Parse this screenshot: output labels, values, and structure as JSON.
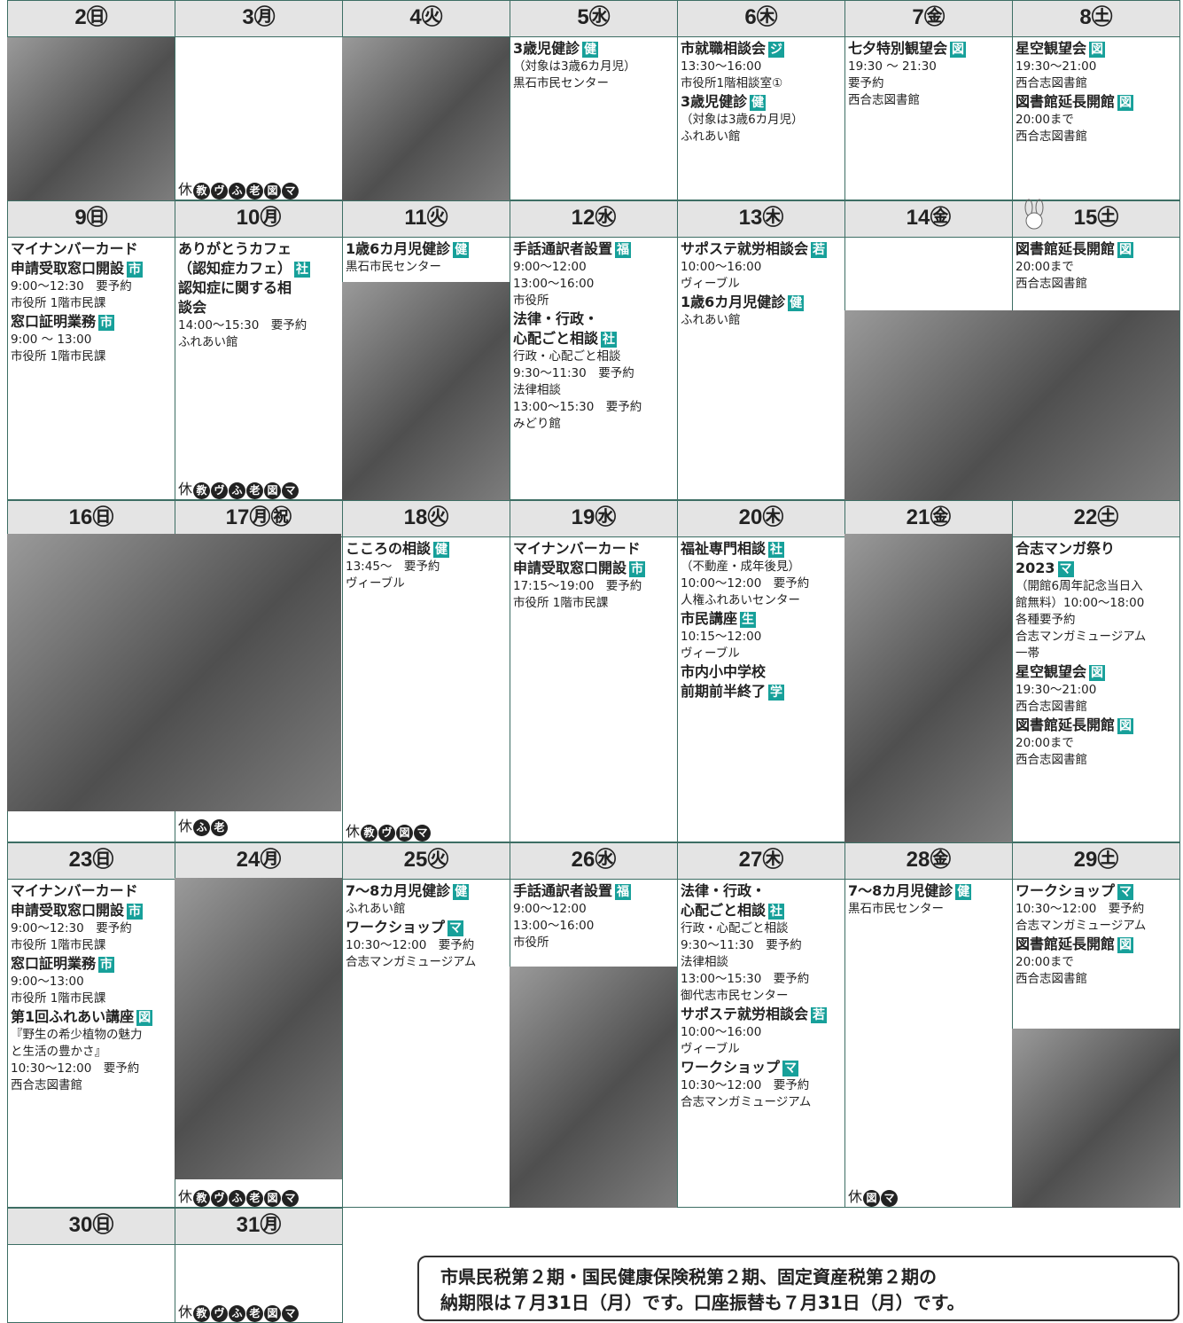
{
  "weeks": [
    {
      "days": [
        {
          "header": "2㊐",
          "events": []
        },
        {
          "header": "3㊊",
          "events": [],
          "closed": "休",
          "closed_marks": [
            "教",
            "ヴ",
            "ふ",
            "老",
            "図",
            "マ"
          ]
        },
        {
          "header": "4㊋",
          "events": []
        },
        {
          "header": "5㊌",
          "events": [
            {
              "title": [
                "3歳児健診"
              ],
              "tag": "健",
              "lines": [
                "（対象は3歳6カ月児）",
                "黒石市民センター"
              ]
            }
          ]
        },
        {
          "header": "6㊍",
          "events": [
            {
              "title": [
                "市就職相談会"
              ],
              "tag": "ジ",
              "lines": [
                "13:30～16:00",
                "市役所1階相談室①"
              ]
            },
            {
              "title": [
                "3歳児健診"
              ],
              "tag": "健",
              "lines": [
                "（対象は3歳6カ月児）",
                "ふれあい館"
              ]
            }
          ]
        },
        {
          "header": "7㊎",
          "events": [
            {
              "title": [
                "七夕特別観望会"
              ],
              "tag": "図",
              "lines": [
                "19:30 ～ 21:30",
                "要予約",
                "西合志図書館"
              ]
            }
          ]
        },
        {
          "header": "8㊏",
          "events": [
            {
              "title": [
                "星空観望会"
              ],
              "tag": "図",
              "lines": [
                "19:30～21:00",
                "西合志図書館"
              ]
            },
            {
              "title": [
                "図書館延長開館"
              ],
              "tag": "図",
              "lines": [
                "20:00まで",
                "西合志図書館"
              ]
            }
          ]
        }
      ]
    },
    {
      "days": [
        {
          "header": "9㊐",
          "events": [
            {
              "title": [
                "マイナンバーカード",
                "申請受取窓口開設"
              ],
              "tag": "市",
              "lines": [
                "9:00～12:30　要予約",
                "市役所 1階市民課"
              ]
            },
            {
              "title": [
                "窓口証明業務"
              ],
              "tag": "市",
              "lines": [
                "9:00 ～ 13:00",
                "市役所 1階市民課"
              ]
            }
          ]
        },
        {
          "header": "10㊊",
          "events": [
            {
              "title": [
                "ありがとうカフェ",
                "（認知症カフェ）"
              ],
              "tag": "社",
              "lines": []
            },
            {
              "title": [
                "認知症に関する相",
                "談会"
              ],
              "lines": [
                "14:00～15:30　要予約",
                "ふれあい館"
              ]
            }
          ],
          "closed": "休",
          "closed_marks": [
            "教",
            "ヴ",
            "ふ",
            "老",
            "図",
            "マ"
          ]
        },
        {
          "header": "11㊋",
          "events": [
            {
              "title": [
                "1歳6カ月児健診"
              ],
              "tag": "健",
              "lines": [
                "黒石市民センター"
              ]
            }
          ]
        },
        {
          "header": "12㊌",
          "events": [
            {
              "title": [
                "手話通訳者設置"
              ],
              "tag": "福",
              "lines": [
                "9:00～12:00",
                "13:00～16:00",
                "市役所"
              ]
            },
            {
              "title": [
                "法律・行政・",
                "心配ごと相談"
              ],
              "tag": "社",
              "lines": [
                "行政・心配ごと相談",
                "9:30～11:30　要予約",
                "法律相談",
                "13:00～15:30　要予約",
                "みどり館"
              ]
            }
          ]
        },
        {
          "header": "13㊍",
          "events": [
            {
              "title": [
                "サポステ就労相談会"
              ],
              "tag": "若",
              "lines": [
                "10:00～16:00",
                "ヴィーブル"
              ]
            },
            {
              "title": [
                "1歳6カ月児健診"
              ],
              "tag": "健",
              "lines": [
                "ふれあい館"
              ]
            }
          ]
        },
        {
          "header": "14㊎",
          "events": []
        },
        {
          "header": "15㊏",
          "events": [
            {
              "title": [
                "図書館延長開館"
              ],
              "tag": "図",
              "lines": [
                "20:00まで",
                "西合志図書館"
              ]
            }
          ]
        }
      ]
    },
    {
      "days": [
        {
          "header": "16㊐",
          "events": []
        },
        {
          "header": "17㊊㊗",
          "events": [],
          "closed": "休",
          "closed_marks": [
            "ふ",
            "老"
          ]
        },
        {
          "header": "18㊋",
          "events": [
            {
              "title": [
                "こころの相談"
              ],
              "tag": "健",
              "lines": [
                "13:45～　要予約",
                "ヴィーブル"
              ]
            }
          ],
          "closed": "休",
          "closed_marks": [
            "教",
            "ヴ",
            "図",
            "マ"
          ]
        },
        {
          "header": "19㊌",
          "events": [
            {
              "title": [
                "マイナンバーカード",
                "申請受取窓口開設"
              ],
              "tag": "市",
              "lines": [
                "17:15～19:00　要予約",
                "市役所 1階市民課"
              ]
            }
          ]
        },
        {
          "header": "20㊍",
          "events": [
            {
              "title": [
                "福祉専門相談"
              ],
              "tag": "社",
              "lines": [
                "（不動産・成年後見）",
                "10:00～12:00　要予約",
                "人権ふれあいセンター"
              ]
            },
            {
              "title": [
                "市民講座"
              ],
              "tag": "生",
              "lines": [
                "10:15～12:00",
                "ヴィーブル"
              ]
            },
            {
              "title": [
                "市内小中学校",
                "前期前半終了"
              ],
              "tag": "学",
              "lines": []
            }
          ]
        },
        {
          "header": "21㊎",
          "events": []
        },
        {
          "header": "22㊏",
          "events": [
            {
              "title": [
                "合志マンガ祭り",
                "2023"
              ],
              "tag": "マ",
              "lines": [
                "（開館6周年記念当日入",
                "館無料）10:00～18:00",
                "各種要予約",
                "合志マンガミュージアム",
                "一帯"
              ]
            },
            {
              "title": [
                "星空観望会"
              ],
              "tag": "図",
              "lines": [
                "19:30～21:00",
                "西合志図書館"
              ]
            },
            {
              "title": [
                "図書館延長開館"
              ],
              "tag": "図",
              "lines": [
                "20:00まで",
                "西合志図書館"
              ]
            }
          ]
        }
      ]
    },
    {
      "days": [
        {
          "header": "23㊐",
          "events": [
            {
              "title": [
                "マイナンバーカード",
                "申請受取窓口開設"
              ],
              "tag": "市",
              "lines": [
                "9:00～12:30　要予約",
                "市役所 1階市民課"
              ]
            },
            {
              "title": [
                "窓口証明業務"
              ],
              "tag": "市",
              "lines": [
                "9:00～13:00",
                "市役所 1階市民課"
              ]
            },
            {
              "title": [
                "第1回ふれあい講座"
              ],
              "tag": "図",
              "lines": [
                "『野生の希少植物の魅力",
                "と生活の豊かさ』",
                "10:30～12:00　要予約",
                "西合志図書館"
              ]
            }
          ]
        },
        {
          "header": "24㊊",
          "events": [],
          "closed": "休",
          "closed_marks": [
            "教",
            "ヴ",
            "ふ",
            "老",
            "図",
            "マ"
          ]
        },
        {
          "header": "25㊋",
          "events": [
            {
              "title": [
                "7～8カ月児健診"
              ],
              "tag": "健",
              "lines": [
                "ふれあい館"
              ]
            },
            {
              "title": [
                "ワークショップ"
              ],
              "tag": "マ",
              "lines": [
                "10:30～12:00　要予約",
                "合志マンガミュージアム"
              ]
            }
          ]
        },
        {
          "header": "26㊌",
          "events": [
            {
              "title": [
                "手話通訳者設置"
              ],
              "tag": "福",
              "lines": [
                "9:00～12:00",
                "13:00～16:00",
                "市役所"
              ]
            }
          ]
        },
        {
          "header": "27㊍",
          "events": [
            {
              "title": [
                "法律・行政・",
                "心配ごと相談"
              ],
              "tag": "社",
              "lines": [
                "行政・心配ごと相談",
                "9:30～11:30　要予約",
                "法律相談",
                "13:00～15:30　要予約",
                "御代志市民センター"
              ]
            },
            {
              "title": [
                "サポステ就労相談会"
              ],
              "tag": "若",
              "lines": [
                "10:00～16:00",
                "ヴィーブル"
              ]
            },
            {
              "title": [
                "ワークショップ"
              ],
              "tag": "マ",
              "lines": [
                "10:30～12:00　要予約",
                "合志マンガミュージアム"
              ]
            }
          ]
        },
        {
          "header": "28㊎",
          "events": [
            {
              "title": [
                "7～8カ月児健診"
              ],
              "tag": "健",
              "lines": [
                "黒石市民センター"
              ]
            }
          ],
          "closed": "休",
          "closed_marks": [
            "図",
            "マ"
          ]
        },
        {
          "header": "29㊏",
          "events": [
            {
              "title": [
                "ワークショップ"
              ],
              "tag": "マ",
              "lines": [
                "10:30～12:00　要予約",
                "合志マンガミュージアム"
              ]
            },
            {
              "title": [
                "図書館延長開館"
              ],
              "tag": "図",
              "lines": [
                "20:00まで",
                "西合志図書館"
              ]
            }
          ]
        }
      ]
    },
    {
      "days": [
        {
          "header": "30㊐",
          "events": []
        },
        {
          "header": "31㊊",
          "events": [],
          "closed": "休",
          "closed_marks": [
            "教",
            "ヴ",
            "ふ",
            "老",
            "図",
            "マ"
          ]
        }
      ]
    }
  ],
  "notice": [
    "市県民税第２期・国民健康保険税第２期、固定資産税第２期の",
    "納期限は７月31日（月）です。口座振替も７月31日（月）です。"
  ]
}
